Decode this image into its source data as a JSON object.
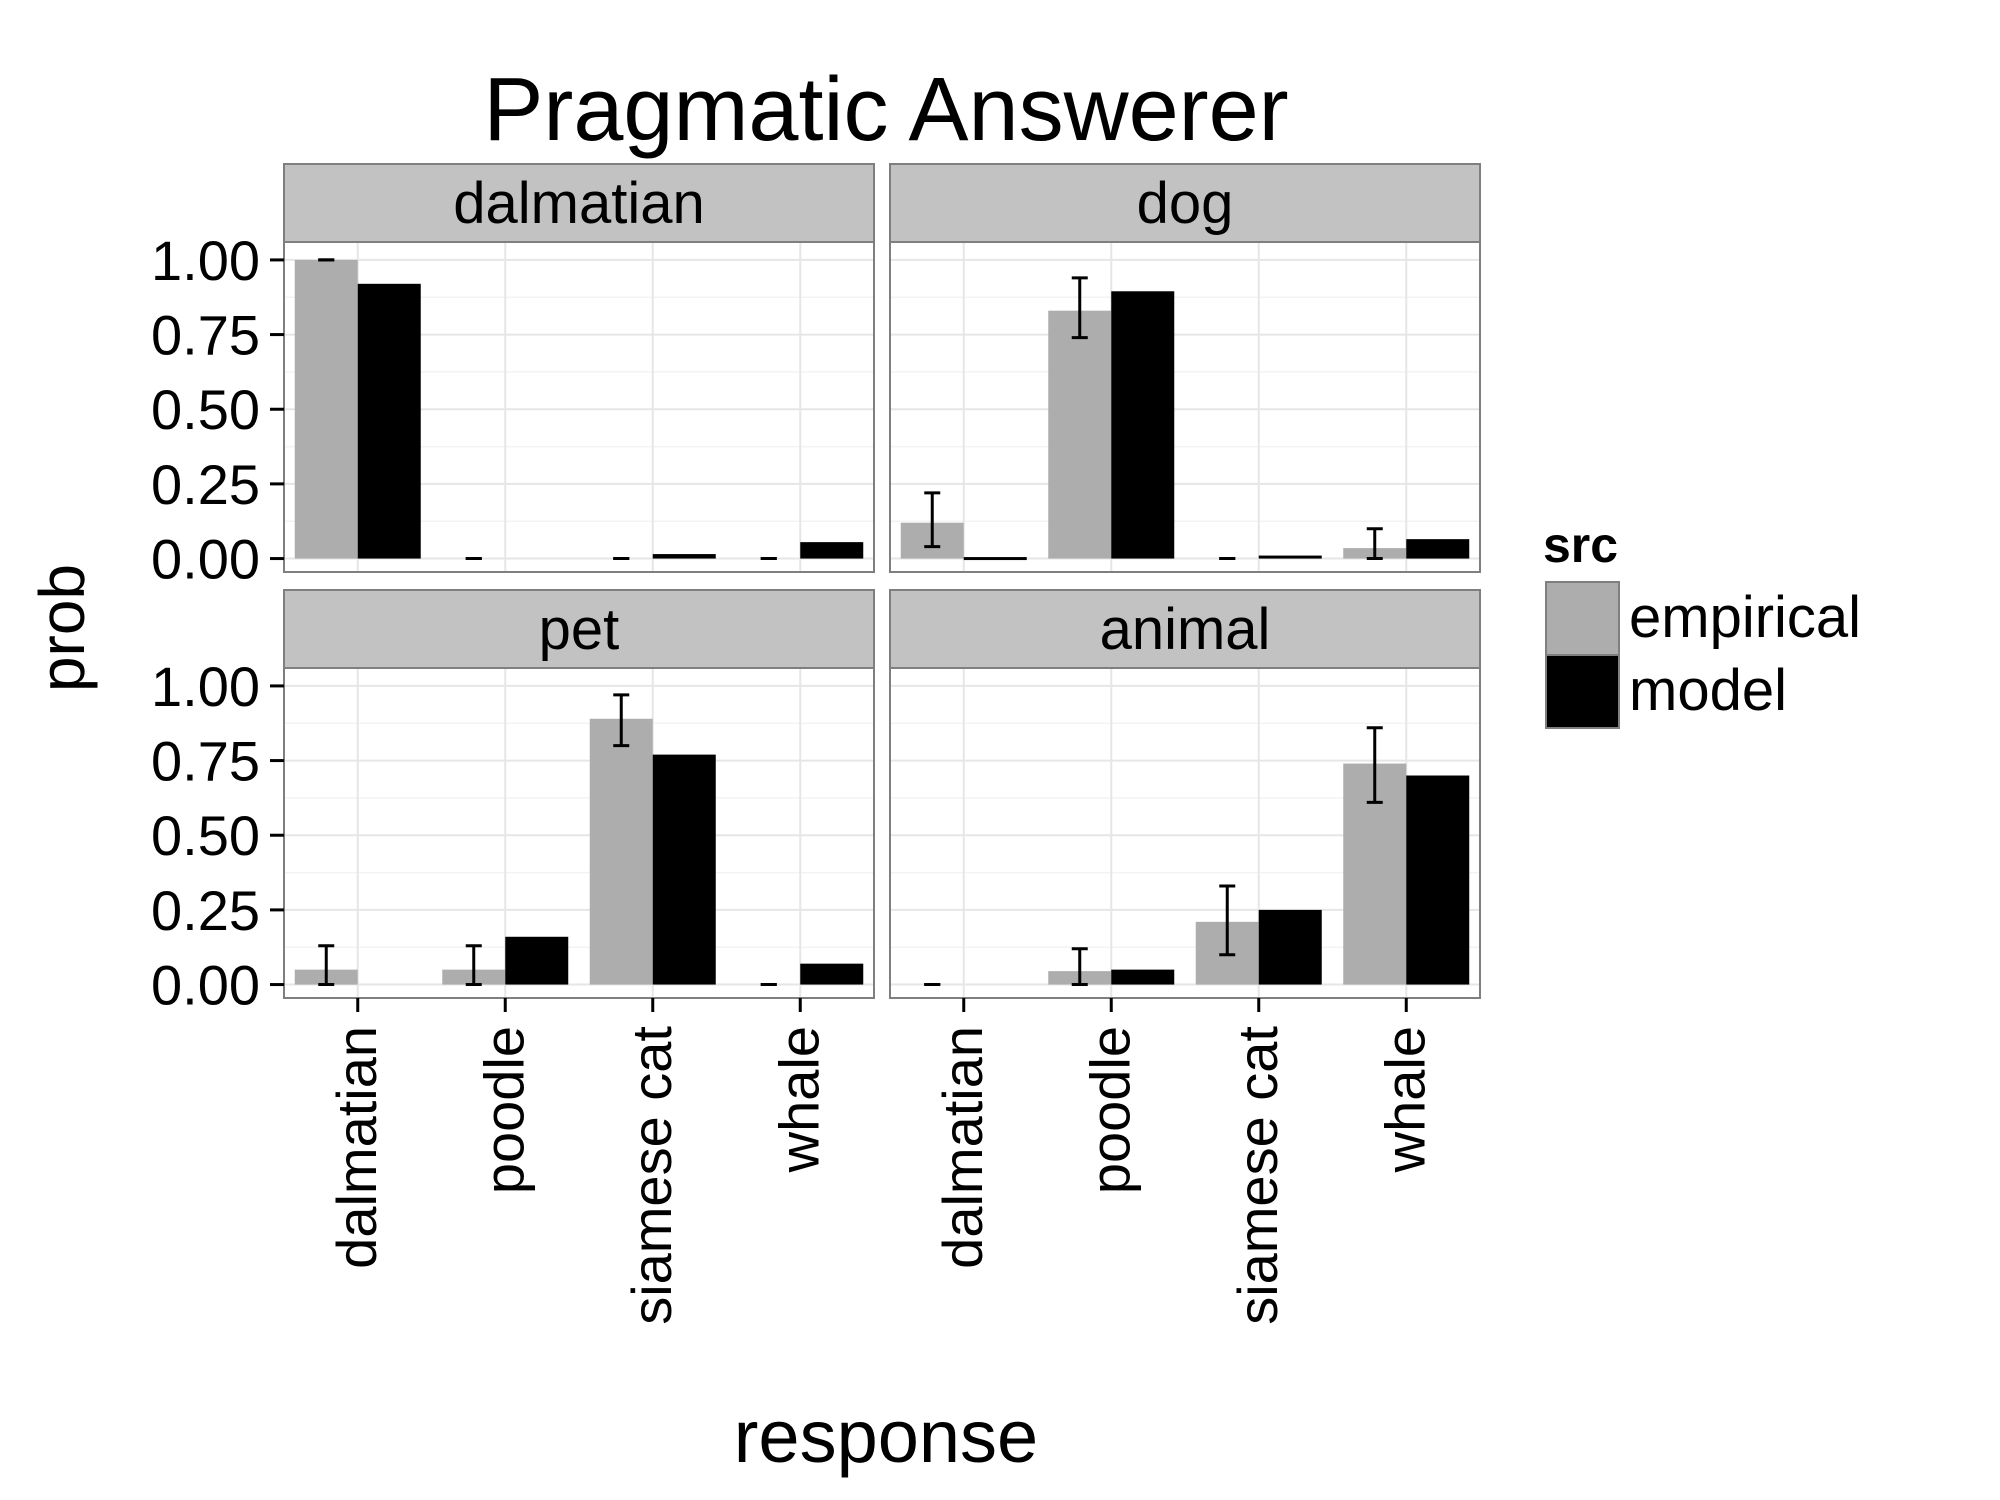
{
  "chart_data": {
    "type": "bar",
    "title": "Pragmatic Answerer",
    "xlabel": "response",
    "ylabel": "prob",
    "ylim": [
      0,
      1.06
    ],
    "yticks": [
      "1.00",
      "0.75",
      "0.50",
      "0.25",
      "0.00"
    ],
    "ytick_values": [
      1.0,
      0.75,
      0.5,
      0.25,
      0.0
    ],
    "categories": [
      "dalmatian",
      "poodle",
      "siamese cat",
      "whale"
    ],
    "legend": {
      "title": "src",
      "position": "right",
      "entries": [
        {
          "label": "empirical",
          "color": "#adadad"
        },
        {
          "label": "model",
          "color": "#000000"
        }
      ]
    },
    "grid": true,
    "facets": [
      {
        "label": "dalmatian",
        "series": [
          {
            "name": "empirical",
            "values": [
              1.0,
              0.0,
              0.0,
              0.0
            ],
            "error_low": [
              1.0,
              0.0,
              0.0,
              0.0
            ],
            "error_high": [
              1.0,
              0.0,
              0.0,
              0.0
            ]
          },
          {
            "name": "model",
            "values": [
              0.92,
              0.0,
              0.015,
              0.055
            ]
          }
        ]
      },
      {
        "label": "dog",
        "series": [
          {
            "name": "empirical",
            "values": [
              0.12,
              0.83,
              0.0,
              0.035
            ],
            "error_low": [
              0.04,
              0.74,
              0.0,
              0.0
            ],
            "error_high": [
              0.22,
              0.94,
              0.0,
              0.1
            ]
          },
          {
            "name": "model",
            "values": [
              0.005,
              0.895,
              0.01,
              0.065
            ]
          }
        ]
      },
      {
        "label": "pet",
        "series": [
          {
            "name": "empirical",
            "values": [
              0.05,
              0.05,
              0.89,
              0.0
            ],
            "error_low": [
              0.0,
              0.0,
              0.8,
              0.0
            ],
            "error_high": [
              0.13,
              0.13,
              0.97,
              0.0
            ]
          },
          {
            "name": "model",
            "values": [
              0.0,
              0.16,
              0.77,
              0.07
            ]
          }
        ]
      },
      {
        "label": "animal",
        "series": [
          {
            "name": "empirical",
            "values": [
              0.0,
              0.045,
              0.21,
              0.74
            ],
            "error_low": [
              0.0,
              0.0,
              0.1,
              0.61
            ],
            "error_high": [
              0.0,
              0.12,
              0.33,
              0.86
            ]
          },
          {
            "name": "model",
            "values": [
              0.0,
              0.05,
              0.25,
              0.7
            ]
          }
        ]
      }
    ],
    "colors": {
      "strip_fill": "#c2c2c2",
      "panel_border": "#7f7f7f",
      "grid_major": "#e6e6e6",
      "grid_minor": "#f3f3f3",
      "empirical": "#adadad",
      "model": "#000000"
    }
  }
}
